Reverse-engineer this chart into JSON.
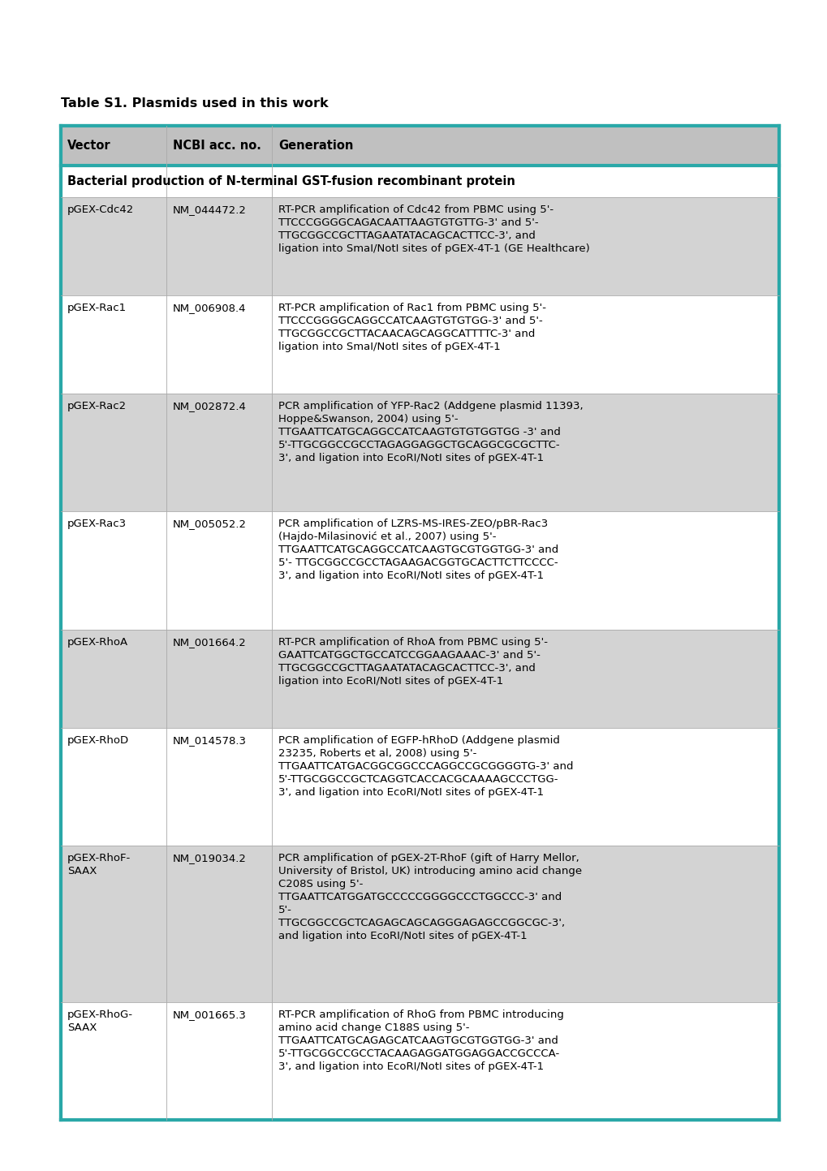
{
  "title": "Table S1. Plasmids used in this work",
  "title_fontsize": 11.5,
  "header_bg": "#c0c0c0",
  "border_color": "#2aa8a8",
  "border_width": 3,
  "font_size": 9.5,
  "header_font_size": 10.5,
  "columns": [
    "Vector",
    "NCBI acc. no.",
    "Generation"
  ],
  "section_header": "Bacterial production of N-terminal GST-fusion recombinant protein",
  "rows": [
    {
      "vector": "pGEX-Cdc42",
      "accession": "NM_044472.2",
      "generation": "RT-PCR amplification of Cdc42 from PBMC using 5'-\nTTCCCGGGGCAGACAATTAAGTGTGTTG-3' and 5'-\nTTGCGGCCGCTTAGAATATACAGCACTTCC-3', and\nligation into SmaI/NotI sites of pGEX-4T-1 (GE Healthcare)",
      "bg": "#d3d3d3",
      "lines": 4
    },
    {
      "vector": "pGEX-Rac1",
      "accession": "NM_006908.4",
      "generation": "RT-PCR amplification of Rac1 from PBMC using 5'-\nTTCCCGGGGCAGGCCATCAAGTGTGTGG-3' and 5'-\nTTGCGGCCGCTTACAACAGCAGGCATTTTC-3' and\nligation into SmaI/NotI sites of pGEX-4T-1",
      "bg": "#ffffff",
      "lines": 4
    },
    {
      "vector": "pGEX-Rac2",
      "accession": "NM_002872.4",
      "generation": "PCR amplification of YFP-Rac2 (Addgene plasmid 11393,\nHoppe&Swanson, 2004) using 5'-\nTTGAATTCATGCAGGCCATCAAGTGTGTGGTGG -3' and\n5'-TTGCGGCCGCCTAGAGGAGGCTGCAGGCGCGCTTC-\n3', and ligation into EcoRI/NotI sites of pGEX-4T-1",
      "bg": "#d3d3d3",
      "lines": 5
    },
    {
      "vector": "pGEX-Rac3",
      "accession": "NM_005052.2",
      "generation": "PCR amplification of LZRS-MS-IRES-ZEO/pBR-Rac3\n(Hajdo-Milasinović et al., 2007) using 5'-\nTTGAATTCATGCAGGCCATCAAGTGCGTGGTGG-3' and\n5'- TTGCGGCCGCCTAGAAGACGGTGCACTTCTTCCCC-\n3', and ligation into EcoRI/NotI sites of pGEX-4T-1",
      "bg": "#ffffff",
      "lines": 5
    },
    {
      "vector": "pGEX-RhoA",
      "accession": "NM_001664.2",
      "generation": "RT-PCR amplification of RhoA from PBMC using 5'-\nGAATTCATGGCTGCCATCCGGAAGAAAC-3' and 5'-\nTTGCGGCCGCTTAGAATATACAGCACTTCC-3', and\nligation into EcoRI/NotI sites of pGEX-4T-1",
      "bg": "#d3d3d3",
      "lines": 4
    },
    {
      "vector": "pGEX-RhoD",
      "accession": "NM_014578.3",
      "generation": "PCR amplification of EGFP-hRhoD (Addgene plasmid\n23235, Roberts et al, 2008) using 5'-\nTTGAATTCATGACGGCGGCCCAGGCCGCGGGGTG-3' and\n5'-TTGCGGCCGCTCAGGTCACCACGCAAAAGCCCTGG-\n3', and ligation into EcoRI/NotI sites of pGEX-4T-1",
      "bg": "#ffffff",
      "lines": 5
    },
    {
      "vector": "pGEX-RhoF-\nSAAX",
      "accession": "NM_019034.2",
      "generation": "PCR amplification of pGEX-2T-RhoF (gift of Harry Mellor,\nUniversity of Bristol, UK) introducing amino acid change\nC208S using 5'-\nTTGAATTCATGGATGCCCCCGGGGCCCTGGCCC-3' and\n5'-\nTTGCGGCCGCTCAGAGCAGCAGGGAGAGCCGGCGC-3',\nand ligation into EcoRI/NotI sites of pGEX-4T-1",
      "bg": "#d3d3d3",
      "lines": 7
    },
    {
      "vector": "pGEX-RhoG-\nSAAX",
      "accession": "NM_001665.3",
      "generation": "RT-PCR amplification of RhoG from PBMC introducing\namino acid change C188S using 5'-\nTTGAATTCATGCAGAGCATCAAGTGCGTGGTGG-3' and\n5'-TTGCGGCCGCCTACAAGAGGATGGAGGACCGCCCA-\n3', and ligation into EcoRI/NotI sites of pGEX-4T-1",
      "bg": "#ffffff",
      "lines": 5
    }
  ]
}
